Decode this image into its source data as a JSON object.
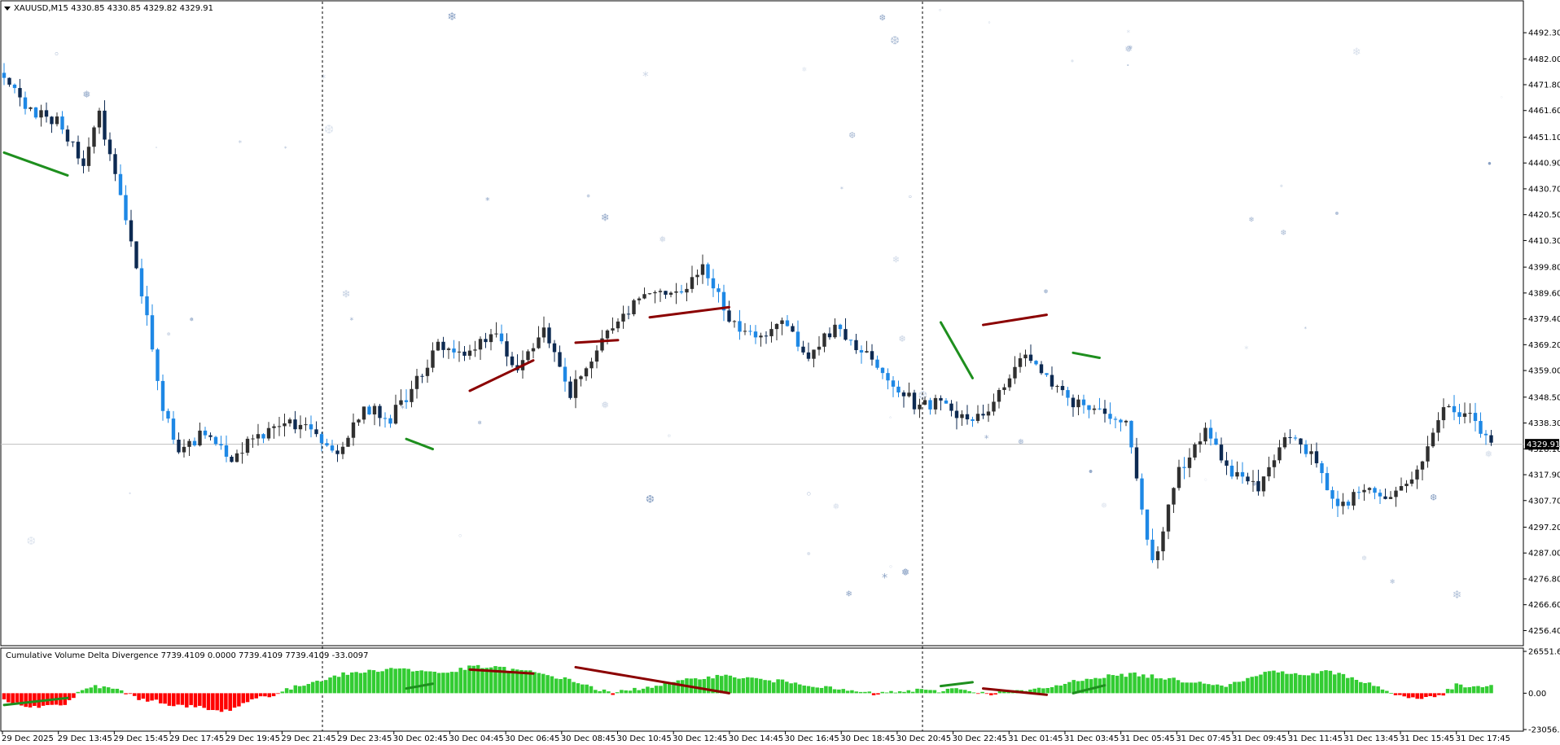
{
  "window": {
    "symbol_line": "XAUUSD,M15  4330.85 4330.85 4329.82 4329.91",
    "menu_icon": "triangle-down-icon"
  },
  "colors": {
    "bull": "#303030",
    "bear_dark": "#0d2a52",
    "bear_light": "#1e88e5",
    "bearish_div": "#8b0000",
    "bullish_div": "#1e8f1e",
    "hist_pos": "#33cc33",
    "hist_neg": "#ff0000",
    "price_tag_bg": "#000000",
    "grid_line": "#c0c0c0",
    "snow": "#5577aa"
  },
  "chart_data": [
    {
      "type": "candlestick",
      "title": "XAUUSD,M15",
      "ylim": [
        4251.4,
        4502.0
      ],
      "y_ticks": [
        "4492.30",
        "4482.00",
        "4471.80",
        "4461.60",
        "4451.10",
        "4440.90",
        "4430.70",
        "4420.50",
        "4410.30",
        "4399.80",
        "4389.60",
        "4379.40",
        "4369.20",
        "4359.00",
        "4348.50",
        "4338.30",
        "4328.10",
        "4317.90",
        "4307.70",
        "4297.20",
        "4287.00",
        "4276.80",
        "4266.60",
        "4256.40"
      ],
      "x_ticks": [
        "29 Dec 2025",
        "29 Dec 13:45",
        "29 Dec 15:45",
        "29 Dec 17:45",
        "29 Dec 19:45",
        "29 Dec 21:45",
        "29 Dec 23:45",
        "30 Dec 02:45",
        "30 Dec 04:45",
        "30 Dec 06:45",
        "30 Dec 08:45",
        "30 Dec 10:45",
        "30 Dec 12:45",
        "30 Dec 14:45",
        "30 Dec 16:45",
        "30 Dec 18:45",
        "30 Dec 20:45",
        "30 Dec 22:45",
        "31 Dec 01:45",
        "31 Dec 03:45",
        "31 Dec 05:45",
        "31 Dec 07:45",
        "31 Dec 09:45",
        "31 Dec 11:45",
        "31 Dec 13:45",
        "31 Dec 15:45",
        "31 Dec 17:45"
      ],
      "current_price": "4329.91",
      "session_separators": [
        "29 Dec 23:00",
        "30 Dec 23:00"
      ],
      "anchors_close": [
        [
          0,
          4472
        ],
        [
          6,
          4460
        ],
        [
          10,
          4457
        ],
        [
          15,
          4442
        ],
        [
          18,
          4460
        ],
        [
          23,
          4420
        ],
        [
          27,
          4380
        ],
        [
          30,
          4345
        ],
        [
          33,
          4325
        ],
        [
          38,
          4335
        ],
        [
          43,
          4325
        ],
        [
          48,
          4333
        ],
        [
          53,
          4340
        ],
        [
          58,
          4335
        ],
        [
          63,
          4328
        ],
        [
          68,
          4345
        ],
        [
          73,
          4340
        ],
        [
          77,
          4352
        ],
        [
          82,
          4368
        ],
        [
          87,
          4364
        ],
        [
          92,
          4374
        ],
        [
          97,
          4360
        ],
        [
          102,
          4374
        ],
        [
          107,
          4350
        ],
        [
          112,
          4368
        ],
        [
          117,
          4380
        ],
        [
          122,
          4392
        ],
        [
          127,
          4388
        ],
        [
          132,
          4402
        ],
        [
          137,
          4380
        ],
        [
          142,
          4370
        ],
        [
          147,
          4378
        ],
        [
          152,
          4366
        ],
        [
          157,
          4375
        ],
        [
          162,
          4367
        ],
        [
          167,
          4355
        ],
        [
          172,
          4346
        ],
        [
          177,
          4346
        ],
        [
          182,
          4340
        ],
        [
          187,
          4345
        ],
        [
          192,
          4366
        ],
        [
          197,
          4357
        ],
        [
          202,
          4347
        ],
        [
          207,
          4344
        ],
        [
          212,
          4338
        ],
        [
          217,
          4282
        ],
        [
          222,
          4320
        ],
        [
          227,
          4335
        ],
        [
          232,
          4318
        ],
        [
          237,
          4312
        ],
        [
          242,
          4335
        ],
        [
          247,
          4325
        ],
        [
          252,
          4305
        ],
        [
          257,
          4313
        ],
        [
          262,
          4310
        ],
        [
          267,
          4320
        ],
        [
          272,
          4345
        ],
        [
          277,
          4340
        ],
        [
          281,
          4331
        ]
      ],
      "candle_count": 282,
      "divergence_lines": [
        {
          "kind": "bullish",
          "from": [
            0,
            4445
          ],
          "to": [
            12,
            4436
          ]
        },
        {
          "kind": "bullish",
          "from": [
            76,
            4332
          ],
          "to": [
            81,
            4328
          ]
        },
        {
          "kind": "bearish",
          "from": [
            88,
            4351
          ],
          "to": [
            100,
            4363
          ]
        },
        {
          "kind": "bearish",
          "from": [
            108,
            4370
          ],
          "to": [
            116,
            4371
          ]
        },
        {
          "kind": "bearish",
          "from": [
            122,
            4380
          ],
          "to": [
            137,
            4384
          ]
        },
        {
          "kind": "bullish",
          "from": [
            177,
            4378
          ],
          "to": [
            183,
            4356
          ]
        },
        {
          "kind": "bearish",
          "from": [
            185,
            4377
          ],
          "to": [
            197,
            4381
          ]
        },
        {
          "kind": "bullish",
          "from": [
            202,
            4366
          ],
          "to": [
            207,
            4364
          ]
        },
        {
          "kind": "bearish",
          "from": [
            329,
            4348
          ],
          "to": [
            335,
            4354
          ]
        }
      ]
    },
    {
      "type": "bar",
      "title": "Cumulative Volume Delta Divergence 7739.4109 0.0000 7739.4109 7739.4109 -33.0097",
      "ylim": [
        -23056.22,
        26551.605
      ],
      "y_ticks": [
        "26551.605",
        "0.00",
        "-23056.22"
      ],
      "anchors": [
        [
          0,
          -5000
        ],
        [
          8,
          -9000
        ],
        [
          14,
          -7000
        ],
        [
          17,
          0
        ],
        [
          21,
          4500
        ],
        [
          27,
          2000
        ],
        [
          30,
          -3000
        ],
        [
          35,
          -5000
        ],
        [
          40,
          -8000
        ],
        [
          45,
          -9000
        ],
        [
          50,
          -12000
        ],
        [
          53,
          -9000
        ],
        [
          58,
          -3000
        ],
        [
          62,
          -1000
        ],
        [
          66,
          3000
        ],
        [
          72,
          8000
        ],
        [
          78,
          12000
        ],
        [
          84,
          14000
        ],
        [
          90,
          16000
        ],
        [
          96,
          14000
        ],
        [
          102,
          13000
        ],
        [
          108,
          17000
        ],
        [
          114,
          16000
        ],
        [
          120,
          14000
        ],
        [
          126,
          11000
        ],
        [
          132,
          7000
        ],
        [
          136,
          3000
        ],
        [
          140,
          -500
        ],
        [
          142,
          1000
        ],
        [
          146,
          3000
        ],
        [
          150,
          5000
        ],
        [
          155,
          7000
        ],
        [
          160,
          10000
        ],
        [
          165,
          11000
        ],
        [
          170,
          10000
        ],
        [
          176,
          8000
        ],
        [
          182,
          7000
        ],
        [
          186,
          5000
        ],
        [
          190,
          3000
        ],
        [
          196,
          1000
        ],
        [
          200,
          -500
        ],
        [
          204,
          500
        ],
        [
          210,
          2000
        ],
        [
          214,
          1000
        ],
        [
          218,
          3000
        ],
        [
          222,
          2000
        ],
        [
          226,
          -700
        ],
        [
          230,
          1500
        ],
        [
          236,
          1500
        ],
        [
          242,
          4500
        ],
        [
          248,
          9000
        ],
        [
          254,
          11000
        ],
        [
          260,
          12000
        ],
        [
          266,
          10000
        ],
        [
          271,
          8000
        ],
        [
          276,
          7000
        ],
        [
          281,
          5000
        ],
        [
          286,
          9000
        ],
        [
          292,
          15000
        ],
        [
          298,
          11000
        ],
        [
          304,
          14000
        ],
        [
          310,
          10000
        ],
        [
          315,
          5000
        ],
        [
          320,
          -1000
        ],
        [
          326,
          -3500
        ],
        [
          330,
          -2000
        ],
        [
          334,
          5000
        ],
        [
          338,
          3500
        ],
        [
          342,
          5000
        ]
      ],
      "count": 343,
      "divergence_lines": [
        {
          "kind": "bullish",
          "from": [
            0,
            -7500
          ],
          "to": [
            12,
            -3000
          ]
        },
        {
          "kind": "bullish",
          "from": [
            76,
            3000
          ],
          "to": [
            81,
            6000
          ]
        },
        {
          "kind": "bearish",
          "from": [
            88,
            15000
          ],
          "to": [
            100,
            12500
          ]
        },
        {
          "kind": "bearish",
          "from": [
            108,
            16500
          ],
          "to": [
            137,
            0
          ]
        },
        {
          "kind": "bullish",
          "from": [
            177,
            4500
          ],
          "to": [
            183,
            7000
          ]
        },
        {
          "kind": "bearish",
          "from": [
            185,
            3000
          ],
          "to": [
            197,
            -1000
          ]
        },
        {
          "kind": "bullish",
          "from": [
            202,
            0
          ],
          "to": [
            208,
            5000
          ]
        },
        {
          "kind": "bearish",
          "from": [
            329,
            3000
          ],
          "to": [
            335,
            1500
          ]
        }
      ]
    }
  ]
}
